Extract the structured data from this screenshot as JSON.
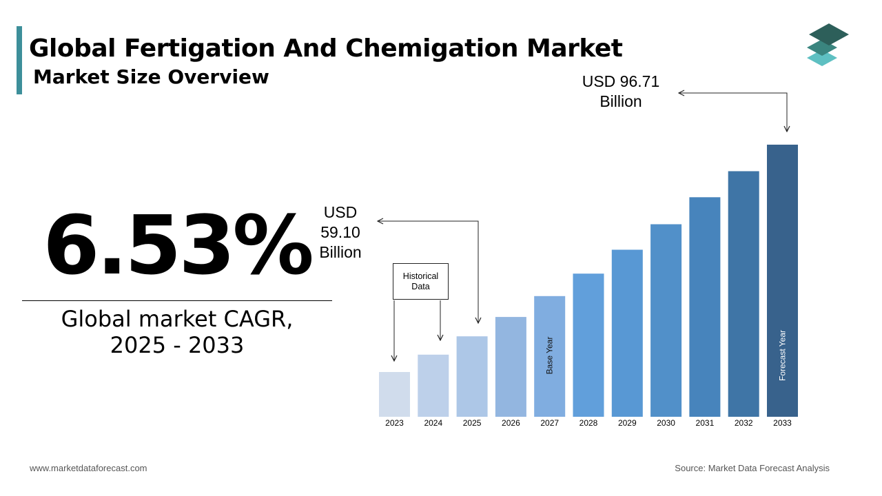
{
  "header": {
    "title": "Global Fertigation And Chemigation Market",
    "subtitle": "Market Size Overview"
  },
  "summary": {
    "cagr_value": "6.53%",
    "cagr_label_line1": "Global market CAGR,",
    "cagr_label_line2": "2025 - 2033"
  },
  "callouts": {
    "forecast_line1": "USD 96.71",
    "forecast_line2": "Billion",
    "base_line1": "USD",
    "base_line2": "59.10",
    "base_line3": "Billion",
    "historical_box": "Historical Data"
  },
  "footer": {
    "website": "www.marketdataforecast.com",
    "source": "Source: Market Data Forecast Analysis"
  },
  "colors": {
    "accent": "#3d8f9a",
    "logo_dark": "#2d5f5a",
    "logo_mid": "#3a857f",
    "logo_light": "#5ec0c2"
  },
  "chart_data": {
    "type": "bar",
    "title": "",
    "xlabel": "",
    "ylabel": "",
    "categories": [
      "2023",
      "2024",
      "2025",
      "2026",
      "2027",
      "2028",
      "2029",
      "2030",
      "2031",
      "2032",
      "2033"
    ],
    "values": [
      52.1,
      55.5,
      59.1,
      62.9,
      67.0,
      71.4,
      76.1,
      81.1,
      86.4,
      91.5,
      96.71
    ],
    "data_labels": {
      "2025": "USD 59.10 Billion",
      "2033": "USD 96.71 Billion"
    },
    "bar_annotations": {
      "2027": "Base Year",
      "2033": "Forecast Year"
    },
    "bar_colors": [
      "#d0dcec",
      "#bdd0ea",
      "#adc7e7",
      "#93b6e0",
      "#80ade0",
      "#619fdb",
      "#5898d4",
      "#5190c9",
      "#4784bc",
      "#3f75a6",
      "#38628c"
    ],
    "ylim": [
      0,
      100
    ],
    "grid": false,
    "legend": "none"
  }
}
